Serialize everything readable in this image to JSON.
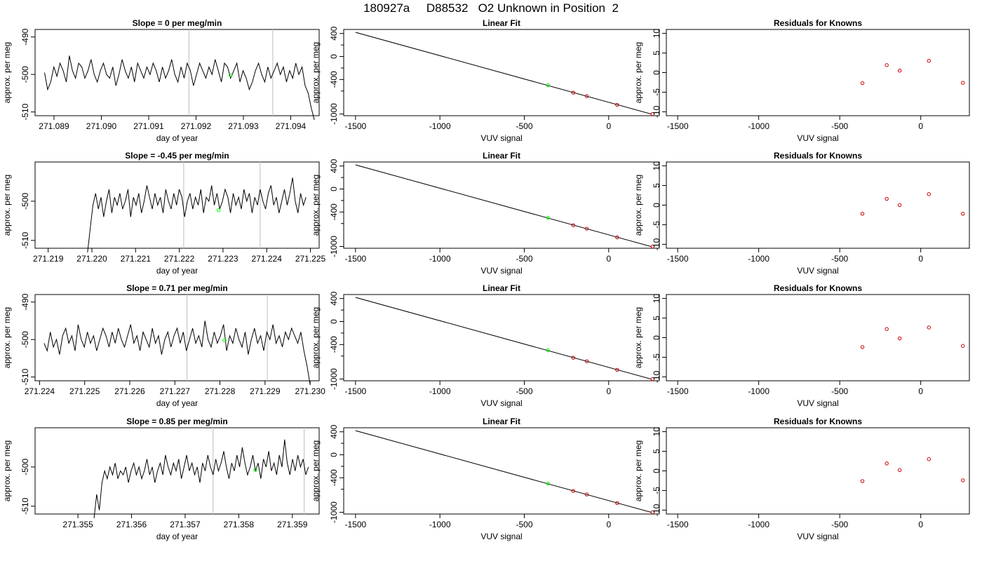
{
  "header": {
    "title": "180927a     D88532   O2 Unknown in Position  2"
  },
  "colors": {
    "trace": "#000000",
    "unknown_point": "#00ff00",
    "known_point": "#cc0000",
    "vline": "#c8c8c8",
    "axis": "#000000"
  },
  "chart_data": [
    {
      "type": "line",
      "panel": "time-series",
      "row": 1,
      "title": "Slope =  0  per meg/min",
      "xlabel": "day of year",
      "ylabel": "approx. per meg",
      "xlim": [
        271.0886,
        271.0946
      ],
      "ylim": [
        -511,
        -488
      ],
      "xticks": [
        "271.089",
        "271.090",
        "271.091",
        "271.092",
        "271.093",
        "271.094"
      ],
      "yticks": [
        "-490",
        "-500",
        "-510"
      ],
      "vlines": [
        271.09185,
        271.09362
      ],
      "series": [
        {
          "x_start": 271.0888,
          "x_end": 271.0945,
          "values": [
            -499.5,
            -504,
            -502,
            -498,
            -500.5,
            -497,
            -499,
            -502,
            -495,
            -499,
            -501,
            -497,
            -498,
            -501,
            -499,
            -496,
            -500,
            -502,
            -499,
            -497,
            -500,
            -501,
            -498,
            -503,
            -500,
            -496,
            -499,
            -501,
            -498,
            -502,
            -497,
            -499,
            -501,
            -498,
            -500,
            -497,
            -499,
            -502,
            -498,
            -501,
            -499,
            -496,
            -500,
            -502,
            -498,
            -501,
            -497,
            -499,
            -503,
            -500,
            -497,
            -499,
            -501,
            -498,
            -500,
            -496,
            -499,
            -502,
            -497,
            -498,
            -501,
            -499,
            -497,
            -502,
            -499,
            -501,
            -504,
            -502,
            -499,
            -497,
            -500,
            -502,
            -498,
            -501,
            -499,
            -497,
            -500,
            -498,
            -502,
            -499,
            -501,
            -497,
            -500,
            -498,
            -503,
            -505,
            -509,
            -513
          ]
        }
      ],
      "points": [
        {
          "x": 271.09273,
          "y": -500.2,
          "role": "unknown"
        }
      ]
    },
    {
      "type": "scatter",
      "panel": "linear-fit",
      "row": 1,
      "title": "Linear Fit",
      "xlabel": "VUV signal",
      "ylabel": "approx. per meg",
      "xlim": [
        -1570,
        300
      ],
      "ylim": [
        -1030,
        470
      ],
      "xticks": [
        -1500,
        -1000,
        -500,
        0
      ],
      "yticks": [
        400,
        0,
        -400,
        -1000
      ],
      "fit_line": [
        [
          -1500,
          420
        ],
        [
          250,
          -1000
        ]
      ],
      "points": [
        {
          "x": -360,
          "y": -500,
          "role": "unknown"
        },
        {
          "x": -210,
          "y": -630,
          "role": "known"
        },
        {
          "x": -130,
          "y": -690,
          "role": "known"
        },
        {
          "x": 50,
          "y": -840,
          "role": "known"
        },
        {
          "x": 260,
          "y": -1000,
          "role": "known"
        }
      ]
    },
    {
      "type": "scatter",
      "panel": "residuals",
      "row": 1,
      "title": "Residuals for Knowns",
      "xlabel": "VUV signal",
      "ylabel": "approx. per meg",
      "xlim": [
        -1570,
        300
      ],
      "ylim": [
        -11,
        11
      ],
      "xticks": [
        -1500,
        -1000,
        -500,
        0
      ],
      "yticks": [
        10,
        5,
        0,
        -5,
        -10
      ],
      "points": [
        {
          "x": -360,
          "y": -2.7
        },
        {
          "x": -210,
          "y": 1.9
        },
        {
          "x": -130,
          "y": 0.5
        },
        {
          "x": 50,
          "y": 3.0
        },
        {
          "x": 260,
          "y": -2.6
        }
      ]
    },
    {
      "type": "line",
      "panel": "time-series",
      "row": 2,
      "title": "Slope =  -0.45  per meg/min",
      "xlabel": "day of year",
      "ylabel": "approx. per meg",
      "xlim": [
        271.2187,
        271.2252
      ],
      "ylim": [
        -512,
        -490
      ],
      "xticks": [
        "271.219",
        "271.220",
        "271.221",
        "271.222",
        "271.223",
        "271.224",
        "271.225"
      ],
      "yticks": [
        "-500",
        "-510"
      ],
      "vlines": [
        271.2221,
        271.22385
      ],
      "series": [
        {
          "x_start": 271.2199,
          "x_end": 271.2249,
          "values": [
            -514,
            -507,
            -501,
            -498,
            -502,
            -499,
            -504,
            -500,
            -497,
            -503,
            -499,
            -501,
            -498,
            -502,
            -500,
            -497,
            -504,
            -499,
            -501,
            -498,
            -503,
            -500,
            -496,
            -499,
            -502,
            -498,
            -501,
            -499,
            -503,
            -497,
            -500,
            -502,
            -498,
            -501,
            -497,
            -499,
            -504,
            -500,
            -498,
            -502,
            -499,
            -501,
            -497,
            -503,
            -499,
            -500,
            -496,
            -501,
            -498,
            -502,
            -500,
            -497,
            -499,
            -503,
            -498,
            -501,
            -499,
            -502,
            -497,
            -500,
            -498,
            -503,
            -499,
            -501,
            -497,
            -500,
            -502,
            -498,
            -496,
            -501,
            -499,
            -503,
            -500,
            -497,
            -501,
            -498,
            -494,
            -500,
            -503,
            -498,
            -501,
            -499
          ]
        }
      ],
      "points": [
        {
          "x": 271.2229,
          "y": -502.3,
          "role": "unknown"
        }
      ]
    },
    {
      "type": "scatter",
      "panel": "linear-fit",
      "row": 2,
      "title": "Linear Fit",
      "xlabel": "VUV signal",
      "ylabel": "approx. per meg",
      "xlim": [
        -1570,
        300
      ],
      "ylim": [
        -1030,
        470
      ],
      "xticks": [
        -1500,
        -1000,
        -500,
        0
      ],
      "yticks": [
        400,
        0,
        -400,
        -1000
      ],
      "fit_line": [
        [
          -1500,
          420
        ],
        [
          250,
          -1000
        ]
      ],
      "points": [
        {
          "x": -360,
          "y": -500,
          "role": "unknown"
        },
        {
          "x": -210,
          "y": -630,
          "role": "known"
        },
        {
          "x": -130,
          "y": -690,
          "role": "known"
        },
        {
          "x": 50,
          "y": -840,
          "role": "known"
        },
        {
          "x": 260,
          "y": -1000,
          "role": "known"
        }
      ]
    },
    {
      "type": "scatter",
      "panel": "residuals",
      "row": 2,
      "title": "Residuals for Knowns",
      "xlabel": "VUV signal",
      "ylabel": "approx. per meg",
      "xlim": [
        -1570,
        300
      ],
      "ylim": [
        -11,
        11
      ],
      "xticks": [
        -1500,
        -1000,
        -500,
        0
      ],
      "yticks": [
        10,
        5,
        0,
        -5,
        -10
      ],
      "points": [
        {
          "x": -360,
          "y": -2.2
        },
        {
          "x": -210,
          "y": 1.6
        },
        {
          "x": -130,
          "y": 0.0
        },
        {
          "x": 50,
          "y": 2.8
        },
        {
          "x": 260,
          "y": -2.2
        }
      ]
    },
    {
      "type": "line",
      "panel": "time-series",
      "row": 3,
      "title": "Slope =  0.71  per meg/min",
      "xlabel": "day of year",
      "ylabel": "approx. per meg",
      "xlim": [
        271.2239,
        271.2302
      ],
      "ylim": [
        -511,
        -488
      ],
      "xticks": [
        "271.224",
        "271.225",
        "271.226",
        "271.227",
        "271.228",
        "271.229",
        "271.230"
      ],
      "yticks": [
        "-490",
        "-500",
        "-510"
      ],
      "vlines": [
        271.22727,
        271.22905
      ],
      "series": [
        {
          "x_start": 271.2241,
          "x_end": 271.23,
          "values": [
            -501,
            -503,
            -498,
            -502,
            -500,
            -504,
            -499,
            -497,
            -501,
            -499,
            -503,
            -496,
            -500,
            -502,
            -498,
            -501,
            -499,
            -503,
            -500,
            -497,
            -499,
            -502,
            -498,
            -501,
            -497,
            -500,
            -502,
            -499,
            -496,
            -501,
            -499,
            -503,
            -498,
            -500,
            -502,
            -497,
            -501,
            -499,
            -504,
            -500,
            -498,
            -502,
            -499,
            -497,
            -501,
            -498,
            -503,
            -500,
            -497,
            -501,
            -499,
            -502,
            -495,
            -500,
            -502,
            -498,
            -501,
            -499,
            -496,
            -503,
            -499,
            -501,
            -497,
            -500,
            -502,
            -498,
            -504,
            -500,
            -497,
            -501,
            -499,
            -503,
            -498,
            -500,
            -496,
            -501,
            -499,
            -502,
            -498,
            -500,
            -497,
            -499,
            -501,
            -498,
            -503,
            -507,
            -512
          ]
        }
      ],
      "points": [
        {
          "x": 271.2281,
          "y": -500.2,
          "role": "unknown"
        }
      ]
    },
    {
      "type": "scatter",
      "panel": "linear-fit",
      "row": 3,
      "title": "Linear Fit",
      "xlabel": "VUV signal",
      "ylabel": "approx. per meg",
      "xlim": [
        -1570,
        300
      ],
      "ylim": [
        -1030,
        470
      ],
      "xticks": [
        -1500,
        -1000,
        -500,
        0
      ],
      "yticks": [
        400,
        0,
        -400,
        -1000
      ],
      "fit_line": [
        [
          -1500,
          420
        ],
        [
          250,
          -1000
        ]
      ],
      "points": [
        {
          "x": -360,
          "y": -500,
          "role": "unknown"
        },
        {
          "x": -210,
          "y": -630,
          "role": "known"
        },
        {
          "x": -130,
          "y": -690,
          "role": "known"
        },
        {
          "x": 50,
          "y": -840,
          "role": "known"
        },
        {
          "x": 260,
          "y": -1000,
          "role": "known"
        }
      ]
    },
    {
      "type": "scatter",
      "panel": "residuals",
      "row": 3,
      "title": "Residuals for Knowns",
      "xlabel": "VUV signal",
      "ylabel": "approx. per meg",
      "xlim": [
        -1570,
        300
      ],
      "ylim": [
        -11,
        11
      ],
      "xticks": [
        -1500,
        -1000,
        -500,
        0
      ],
      "yticks": [
        10,
        5,
        0,
        -5,
        -10
      ],
      "points": [
        {
          "x": -360,
          "y": -2.4
        },
        {
          "x": -210,
          "y": 2.2
        },
        {
          "x": -130,
          "y": -0.2
        },
        {
          "x": 50,
          "y": 2.6
        },
        {
          "x": 260,
          "y": -2.1
        }
      ]
    },
    {
      "type": "line",
      "panel": "time-series",
      "row": 4,
      "title": "Slope =  0.85  per meg/min",
      "xlabel": "day of year",
      "ylabel": "approx. per meg",
      "xlim": [
        271.3542,
        271.3595
      ],
      "ylim": [
        -512,
        -490
      ],
      "xticks": [
        "271.355",
        "271.356",
        "271.357",
        "271.358",
        "271.359"
      ],
      "yticks": [
        "-500",
        "-510"
      ],
      "vlines": [
        271.35752,
        271.35922
      ],
      "series": [
        {
          "x_start": 271.3553,
          "x_end": 271.3593,
          "values": [
            -515,
            -507,
            -511,
            -504,
            -501,
            -503,
            -500,
            -502,
            -499,
            -503,
            -501,
            -502,
            -500,
            -504,
            -501,
            -499,
            -502,
            -500,
            -503,
            -501,
            -498,
            -502,
            -500,
            -504,
            -501,
            -499,
            -502,
            -497,
            -500,
            -502,
            -499,
            -501,
            -498,
            -503,
            -500,
            -497,
            -501,
            -499,
            -502,
            -500,
            -504,
            -499,
            -501,
            -497,
            -500,
            -502,
            -498,
            -501,
            -499,
            -496,
            -500,
            -503,
            -499,
            -501,
            -497,
            -500,
            -495,
            -499,
            -502,
            -500,
            -497,
            -501,
            -499,
            -503,
            -498,
            -500,
            -496,
            -501,
            -499,
            -502,
            -497,
            -500,
            -493,
            -499,
            -502,
            -498,
            -501,
            -497,
            -500,
            -498,
            -502,
            -500
          ]
        }
      ],
      "points": [
        {
          "x": 271.35831,
          "y": -500.8,
          "role": "unknown"
        }
      ]
    },
    {
      "type": "scatter",
      "panel": "linear-fit",
      "row": 4,
      "title": "Linear Fit",
      "xlabel": "VUV signal",
      "ylabel": "approx. per meg",
      "xlim": [
        -1570,
        300
      ],
      "ylim": [
        -1030,
        470
      ],
      "xticks": [
        -1500,
        -1000,
        -500,
        0
      ],
      "yticks": [
        400,
        0,
        -400,
        -1000
      ],
      "fit_line": [
        [
          -1500,
          420
        ],
        [
          250,
          -1000
        ]
      ],
      "points": [
        {
          "x": -360,
          "y": -500,
          "role": "unknown"
        },
        {
          "x": -210,
          "y": -630,
          "role": "known"
        },
        {
          "x": -130,
          "y": -690,
          "role": "known"
        },
        {
          "x": 50,
          "y": -840,
          "role": "known"
        },
        {
          "x": 260,
          "y": -1000,
          "role": "known"
        }
      ]
    },
    {
      "type": "scatter",
      "panel": "residuals",
      "row": 4,
      "title": "Residuals for Knowns",
      "xlabel": "VUV signal",
      "ylabel": "approx. per meg",
      "xlim": [
        -1570,
        300
      ],
      "ylim": [
        -11,
        11
      ],
      "xticks": [
        -1500,
        -1000,
        -500,
        0
      ],
      "yticks": [
        10,
        5,
        0,
        -5,
        -10
      ],
      "points": [
        {
          "x": -360,
          "y": -2.6
        },
        {
          "x": -210,
          "y": 1.9
        },
        {
          "x": -130,
          "y": 0.2
        },
        {
          "x": 50,
          "y": 3.0
        },
        {
          "x": 260,
          "y": -2.4
        }
      ]
    }
  ]
}
